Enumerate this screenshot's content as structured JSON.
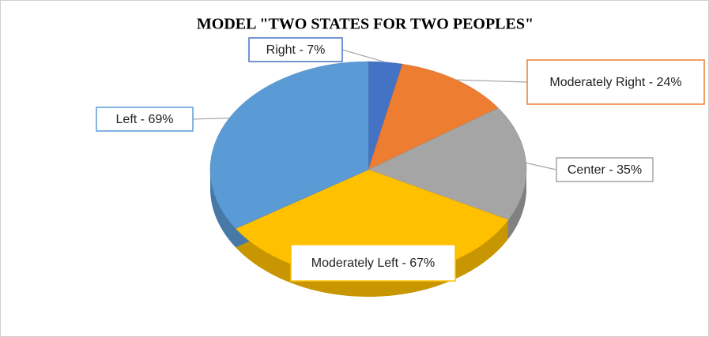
{
  "chart_data": {
    "type": "pie",
    "title": "MODEL \"TWO STATES FOR TWO PEOPLES\"",
    "values": [
      7,
      24,
      35,
      67,
      69
    ],
    "value_labels": [
      "Right - 7%",
      "Moderately Right - 24%",
      "Center - 35%",
      "Moderately Left - 67%",
      "Left - 69%"
    ],
    "colors": [
      "#4472c4",
      "#ed7d31",
      "#a5a5a5",
      "#ffc000",
      "#5b9bd5"
    ]
  }
}
